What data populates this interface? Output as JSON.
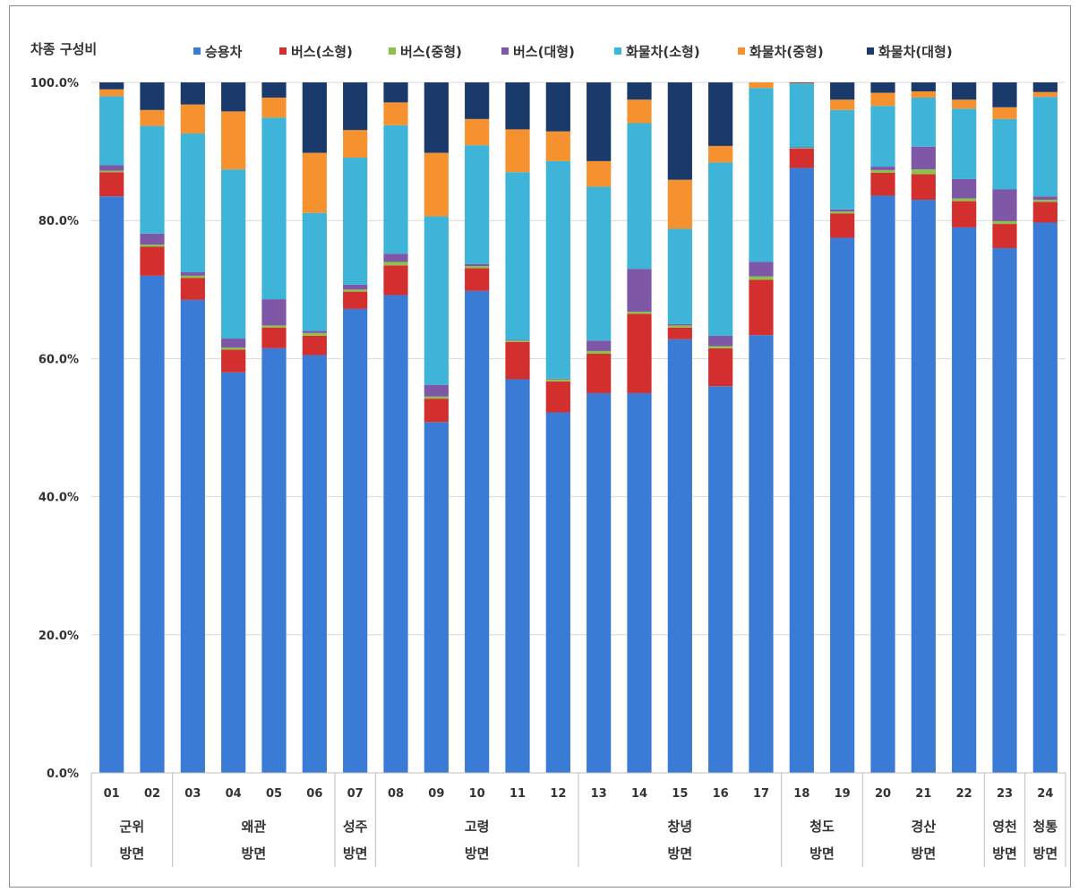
{
  "chart_data": {
    "type": "bar",
    "stacked": true,
    "title": "차종 구성비",
    "ylim": [
      0,
      100
    ],
    "y_ticks": [
      "0.0%",
      "20.0%",
      "40.0%",
      "60.0%",
      "80.0%",
      "100.0%"
    ],
    "y_tick_values": [
      0,
      20,
      40,
      60,
      80,
      100
    ],
    "grid": true,
    "legend_position": "top",
    "categories": [
      "01",
      "02",
      "03",
      "04",
      "05",
      "06",
      "07",
      "08",
      "09",
      "10",
      "11",
      "12",
      "13",
      "14",
      "15",
      "16",
      "17",
      "18",
      "19",
      "20",
      "21",
      "22",
      "23",
      "24"
    ],
    "groups": [
      {
        "line1": "군위",
        "line2": "방면",
        "span": [
          0,
          1
        ]
      },
      {
        "line1": "왜관",
        "line2": "방면",
        "span": [
          2,
          5
        ]
      },
      {
        "line1": "성주",
        "line2": "방면",
        "span": [
          6,
          6
        ]
      },
      {
        "line1": "고령",
        "line2": "방면",
        "span": [
          7,
          11
        ]
      },
      {
        "line1": "창녕",
        "line2": "방면",
        "span": [
          12,
          16
        ]
      },
      {
        "line1": "청도",
        "line2": "방면",
        "span": [
          17,
          18
        ]
      },
      {
        "line1": "경산",
        "line2": "방면",
        "span": [
          19,
          21
        ]
      },
      {
        "line1": "영천",
        "line2": "방면",
        "span": [
          22,
          22
        ]
      },
      {
        "line1": "청통",
        "line2": "방면",
        "span": [
          23,
          23
        ]
      }
    ],
    "series": [
      {
        "name": "승용차",
        "color": "#3a7bd5",
        "values": [
          83.5,
          72.0,
          68.5,
          58.0,
          61.5,
          60.5,
          67.2,
          69.2,
          50.8,
          69.8,
          57.0,
          52.2,
          55.0,
          55.0,
          62.8,
          56.0,
          63.4,
          87.6,
          77.5,
          83.6,
          83.0,
          79.0,
          76.0,
          79.7
        ]
      },
      {
        "name": "버스(소형)",
        "color": "#d32f2f",
        "values": [
          3.5,
          4.2,
          3.2,
          3.3,
          3.0,
          2.8,
          2.5,
          4.3,
          3.4,
          3.3,
          5.4,
          4.5,
          5.7,
          11.5,
          1.7,
          5.5,
          8.0,
          2.8,
          3.5,
          3.3,
          3.7,
          3.8,
          3.5,
          3.0
        ]
      },
      {
        "name": "버스(중형)",
        "color": "#8bc34a",
        "values": [
          0.2,
          0.3,
          0.3,
          0.3,
          0.3,
          0.4,
          0.3,
          0.5,
          0.3,
          0.3,
          0.2,
          0.3,
          0.4,
          0.3,
          0.3,
          0.3,
          0.5,
          0.1,
          0.3,
          0.4,
          0.7,
          0.4,
          0.4,
          0.3
        ]
      },
      {
        "name": "버스(대형)",
        "color": "#7e57a6",
        "values": [
          0.8,
          1.6,
          0.5,
          1.3,
          3.8,
          0.3,
          0.7,
          1.2,
          1.7,
          0.3,
          0.1,
          0.1,
          1.5,
          6.2,
          0.2,
          1.5,
          2.1,
          0.1,
          0.3,
          0.5,
          3.3,
          2.8,
          4.6,
          0.5
        ]
      },
      {
        "name": "화물차(소형)",
        "color": "#3db4d8",
        "values": [
          10.0,
          15.6,
          20.1,
          24.5,
          26.3,
          17.1,
          18.4,
          18.6,
          24.4,
          17.2,
          24.3,
          31.5,
          22.3,
          21.1,
          13.8,
          25.1,
          25.2,
          9.2,
          14.4,
          8.8,
          7.1,
          10.2,
          10.2,
          14.4
        ]
      },
      {
        "name": "화물차(중형)",
        "color": "#f5922f",
        "values": [
          1.0,
          2.3,
          4.2,
          8.4,
          2.9,
          8.7,
          4.0,
          3.3,
          9.2,
          3.8,
          6.2,
          4.3,
          3.7,
          3.4,
          7.1,
          2.4,
          0.8,
          0.1,
          1.5,
          1.9,
          0.9,
          1.3,
          1.7,
          0.7
        ]
      },
      {
        "name": "화물차(대형)",
        "color": "#1a3a6b",
        "values": [
          1.0,
          4.0,
          3.2,
          4.2,
          2.2,
          10.2,
          6.9,
          2.9,
          10.2,
          5.3,
          6.8,
          7.1,
          11.4,
          2.5,
          14.1,
          9.2,
          0.0,
          0.1,
          2.5,
          1.5,
          1.3,
          2.5,
          3.6,
          1.4
        ]
      }
    ]
  }
}
